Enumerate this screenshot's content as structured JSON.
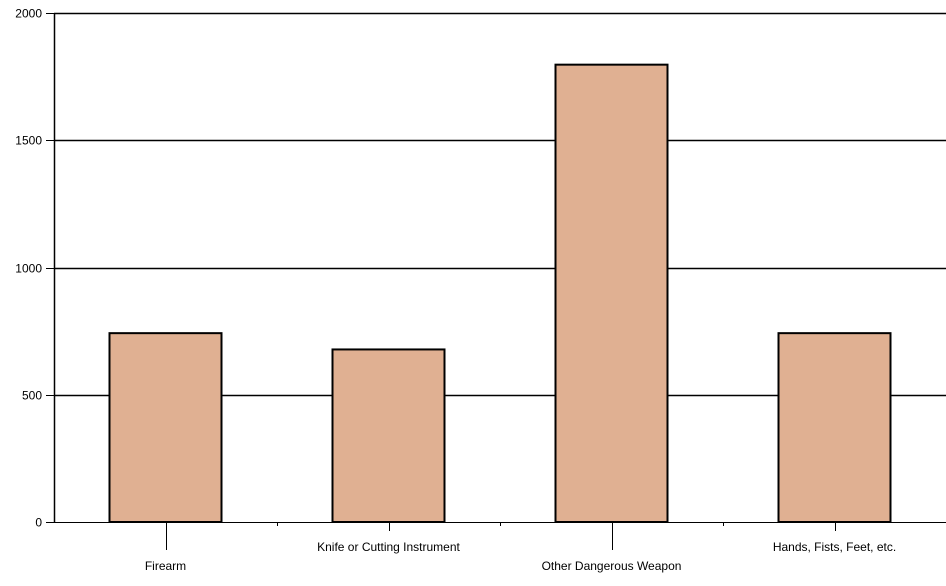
{
  "colors": {
    "bar_fill": "#e0b092",
    "bar_stroke": "#000000",
    "grid": "#000000",
    "axis": "#000000",
    "background": "#ffffff"
  },
  "chart_data": {
    "type": "bar",
    "title": "",
    "xlabel": "",
    "ylabel": "",
    "categories": [
      "Firearm",
      "Knife or Cutting Instrument",
      "Other Dangerous Weapon",
      "Hands, Fists, Feet, etc."
    ],
    "values": [
      742,
      678,
      1797,
      742
    ],
    "ylim": [
      0,
      2000
    ],
    "yticks": [
      0,
      500,
      1000,
      1500,
      2000
    ],
    "ytick_labels": [
      "0",
      "500",
      "1000",
      "1500",
      "2000"
    ],
    "grid": true,
    "legend": "none"
  }
}
